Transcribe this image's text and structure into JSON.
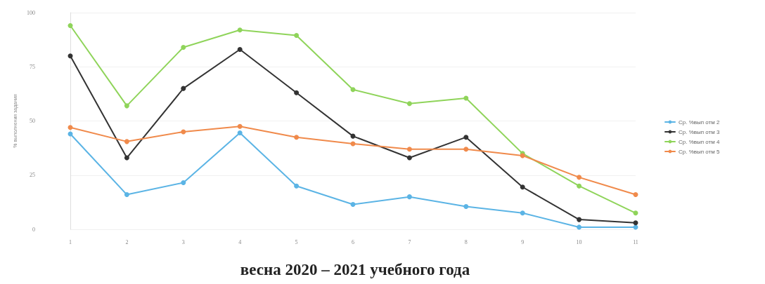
{
  "chart_data": {
    "type": "line",
    "title": "весна 2020 – 2021 учебного года",
    "ylabel": "% выполнения задания",
    "categories": [
      "1",
      "2",
      "3",
      "4",
      "5",
      "6",
      "7",
      "8",
      "9",
      "10",
      "11"
    ],
    "series": [
      {
        "name": "Ср. %вып отм 2",
        "color": "#5bb4e5",
        "values": [
          44,
          16,
          21.5,
          44.5,
          20,
          11.5,
          15,
          10.5,
          7.5,
          1,
          1
        ]
      },
      {
        "name": "Ср. %вып отм 3",
        "color": "#333333",
        "values": [
          80,
          33,
          65,
          83,
          63,
          43,
          33,
          42.5,
          19.5,
          4.5,
          3
        ]
      },
      {
        "name": "Ср. %вып отм 4",
        "color": "#8fd45a",
        "values": [
          94,
          57,
          84,
          92,
          89.5,
          64.5,
          58,
          60.5,
          35,
          20,
          7.5
        ]
      },
      {
        "name": "Ср. %вып отм 5",
        "color": "#f08a4b",
        "values": [
          47,
          40.5,
          45,
          47.5,
          42.5,
          39.5,
          37,
          37,
          34,
          24,
          16
        ]
      }
    ],
    "ylim": [
      0,
      100
    ],
    "yticks": [
      0,
      25,
      50,
      75,
      100
    ],
    "grid": "y",
    "legend": "right",
    "marker": "circle",
    "line_style": "solid"
  }
}
